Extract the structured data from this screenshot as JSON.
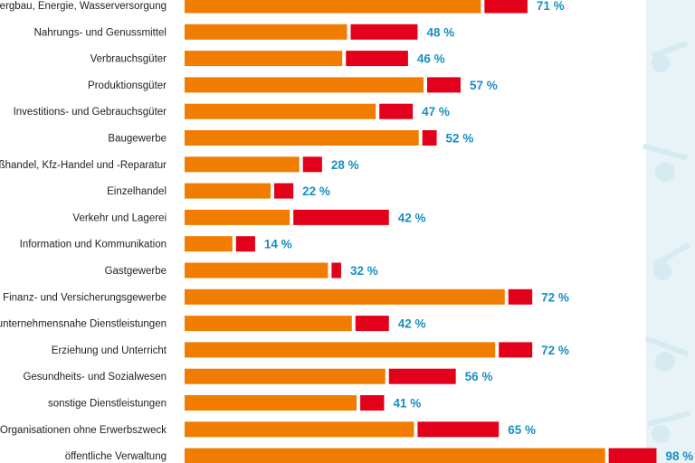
{
  "chart_data": {
    "type": "bar",
    "orientation": "horizontal",
    "stacked": true,
    "unit": "%",
    "xlim": [
      0,
      100
    ],
    "grid": false,
    "colors": {
      "segment1": "#f07d00",
      "segment2": "#e2001a",
      "total_label": "#1a8fc0",
      "decoration": "#d6eaf1"
    },
    "categories": [
      "Bergbau, Energie, Wasserversorgung",
      "Nahrungs- und Genussmittel",
      "Verbrauchsgüter",
      "Produktionsgüter",
      "Investitions- und Gebrauchsgüter",
      "Baugewerbe",
      "Großhandel, Kfz-Handel und -Reparatur",
      "Einzelhandel",
      "Verkehr und Lagerei",
      "Information und Kommunikation",
      "Gastgewerbe",
      "Finanz- und Versicherungsgewerbe",
      "unternehmensnahe Dienstleistungen",
      "Erziehung und Unterricht",
      "Gesundheits- und Sozialwesen",
      "sonstige Dienstleistungen",
      "Organisationen ohne Erwerbszweck",
      "öffentliche Verwaltung"
    ],
    "series": [
      {
        "values": [
          62,
          34,
          33,
          50,
          40,
          49,
          24,
          18,
          22,
          10,
          30,
          67,
          35,
          65,
          42,
          36,
          48,
          88
        ]
      },
      {
        "values": [
          9,
          14,
          13,
          7,
          7,
          3,
          4,
          4,
          20,
          4,
          2,
          5,
          7,
          7,
          14,
          5,
          17,
          10
        ]
      }
    ],
    "total_labels": [
      "71 %",
      "48 %",
      "46 %",
      "57 %",
      "47 %",
      "52 %",
      "28 %",
      "22 %",
      "42 %",
      "14 %",
      "32 %",
      "72 %",
      "42 %",
      "72 %",
      "56 %",
      "41 %",
      "65 %",
      "98 %"
    ]
  }
}
